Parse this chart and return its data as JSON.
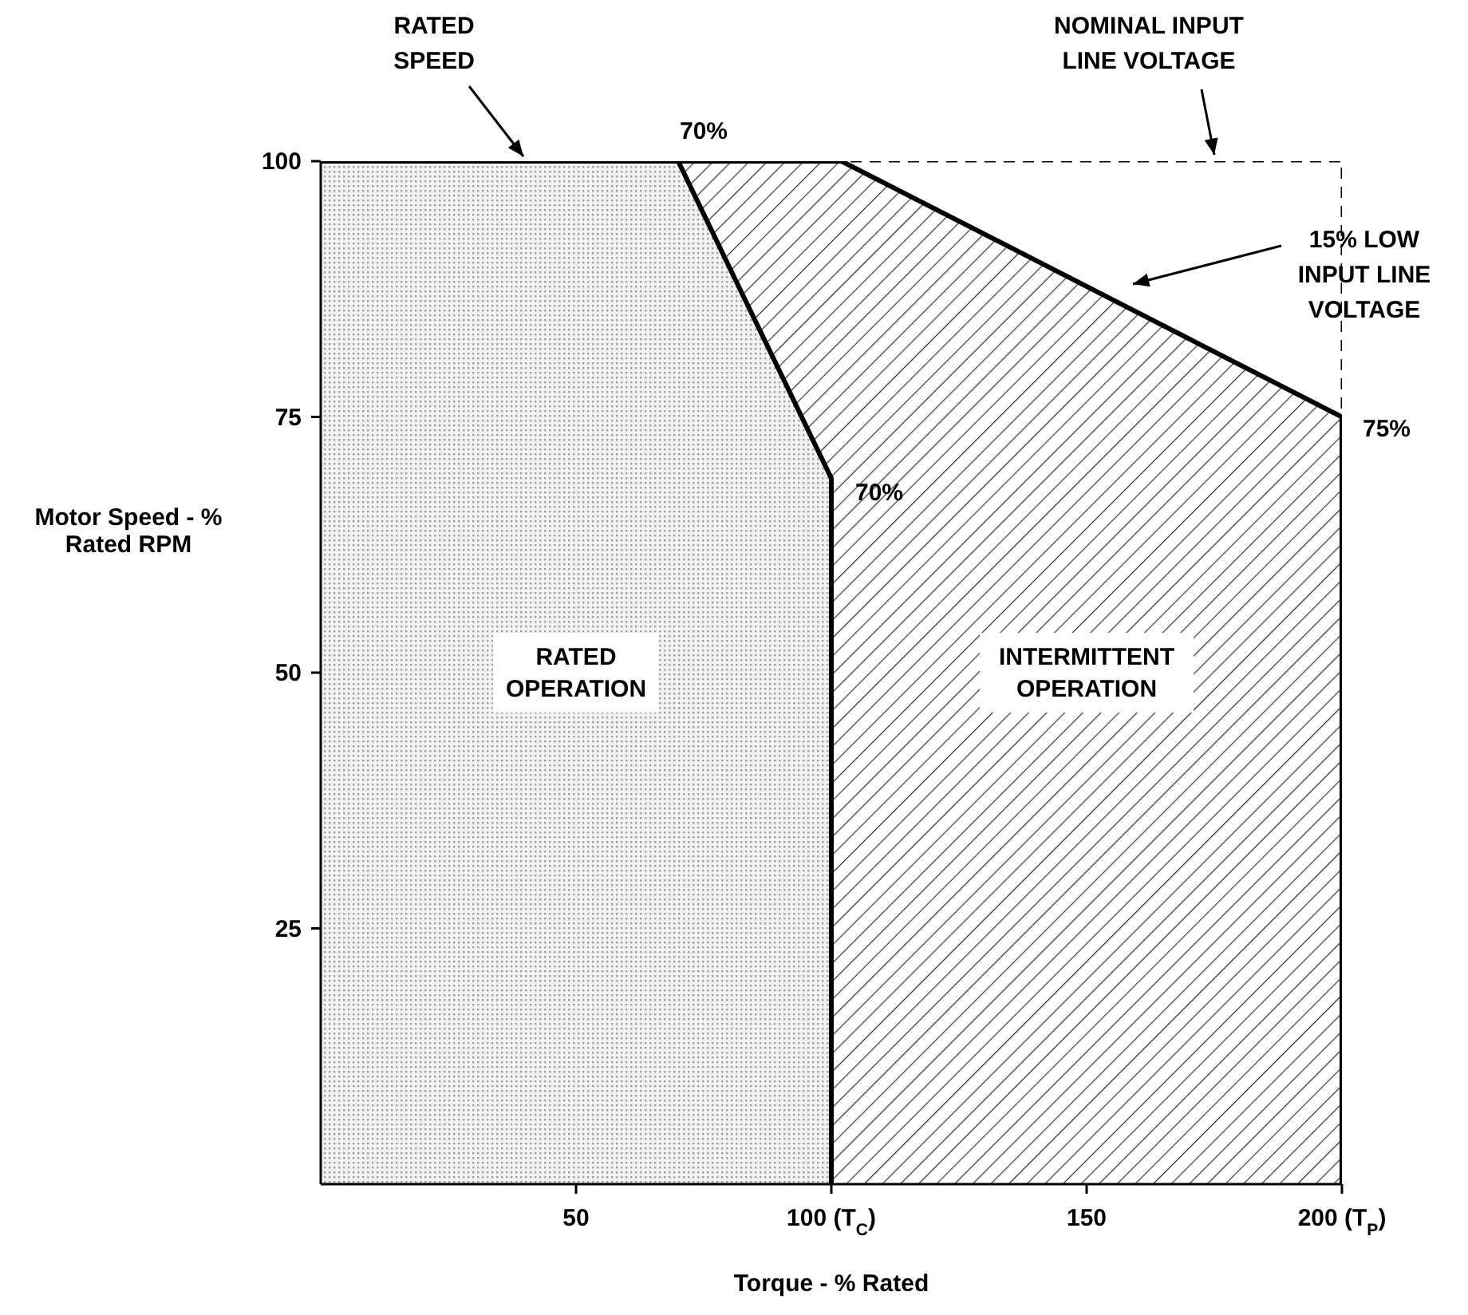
{
  "chart_data": {
    "type": "area",
    "xlabel": "Torque - % Rated",
    "ylabel": "Motor Speed - % Rated RPM",
    "xlim": [
      0,
      200
    ],
    "xticks": [
      50,
      {
        "value": 100,
        "label": "100 (T$_{C}$)"
      },
      150,
      {
        "value": 200,
        "label": "200 (T$_{P}$)"
      }
    ],
    "ylim": [
      0,
      100
    ],
    "yticks": [
      25,
      50,
      75,
      100
    ],
    "series": [
      {
        "name": "INTERMITTENT OPERATION",
        "color": "#303030",
        "x": [
          70,
          102,
          200,
          200
        ],
        "values": [
          100,
          100,
          75,
          0
        ]
      },
      {
        "name": "RATED OPERATION",
        "color": "#a0a0a0",
        "x": [
          0,
          70,
          100,
          100
        ],
        "values": [
          100,
          100,
          69,
          0
        ]
      },
      {
        "type": "line",
        "color": "#000000",
        "line_style": "dashed",
        "x": [
          100,
          200,
          200
        ],
        "values": [
          100,
          100,
          75
        ]
      }
    ],
    "annotations": [
      "RATED SPEED",
      {
        "text": "70%",
        "x": 70,
        "y": 100
      },
      {
        "text": "70%",
        "x": 100,
        "y": 69
      },
      {
        "text": "75%",
        "x": 200,
        "y": 75
      },
      "NOMINAL INPUT LINE VOLTAGE",
      "15% LOW INPUT LINE VOLTAGE"
    ]
  }
}
